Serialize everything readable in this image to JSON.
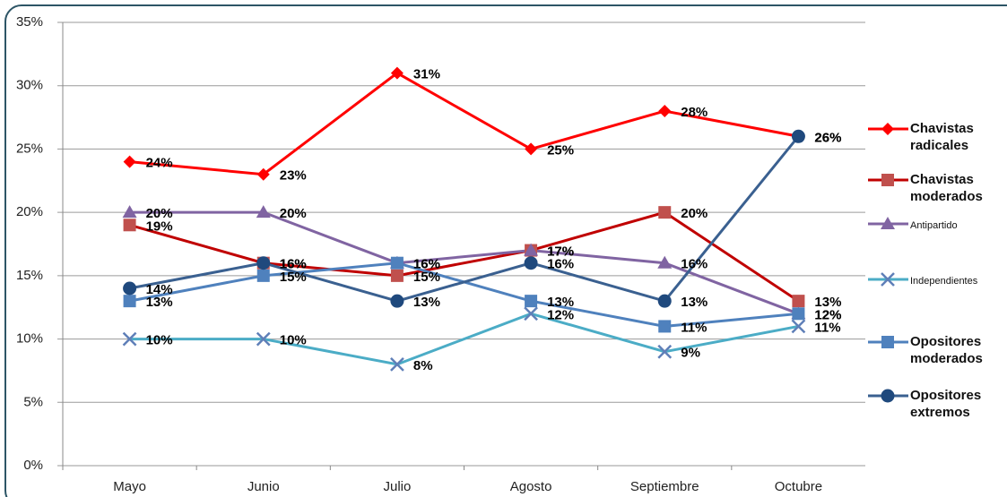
{
  "chart_data": {
    "type": "line",
    "categories": [
      "Mayo",
      "Junio",
      "Julio",
      "Agosto",
      "Septiembre",
      "Octubre"
    ],
    "ylim": [
      0,
      35
    ],
    "yticks": [
      {
        "value": 0,
        "label": "0%"
      },
      {
        "value": 5,
        "label": "5%"
      },
      {
        "value": 10,
        "label": "10%"
      },
      {
        "value": 15,
        "label": "15%"
      },
      {
        "value": 20,
        "label": "20%"
      },
      {
        "value": 25,
        "label": "25%"
      },
      {
        "value": 30,
        "label": "30%"
      },
      {
        "value": 35,
        "label": "35%"
      }
    ],
    "grid": true,
    "legend": "right",
    "series": [
      {
        "name": "Chavistas radicales",
        "color": "#ff0000",
        "marker_color": "#ff0000",
        "marker": "diamond",
        "values": [
          24,
          23,
          31,
          25,
          28,
          26
        ],
        "value_labels": [
          "24%",
          "23%",
          "31%",
          "25%",
          "28%",
          "26%"
        ]
      },
      {
        "name": "Chavistas moderados",
        "color": "#c00000",
        "marker_color": "#c0504d",
        "marker": "square",
        "values": [
          19,
          16,
          15,
          17,
          20,
          13
        ],
        "value_labels": [
          "19%",
          "16%",
          "15%",
          "17%",
          "20%",
          "13%"
        ]
      },
      {
        "name": "Antipartido",
        "color": "#8064a2",
        "marker_color": "#8064a2",
        "marker": "triangle",
        "values": [
          20,
          20,
          16,
          17,
          16,
          12
        ],
        "value_labels": [
          "20%",
          "20%",
          "16%",
          "17%",
          "16%",
          "12%"
        ]
      },
      {
        "name": "Independientes",
        "color": "#4bacc6",
        "marker_color": "#5f7fb8",
        "marker": "x",
        "values": [
          10,
          10,
          8,
          12,
          9,
          11
        ],
        "value_labels": [
          "10%",
          "10%",
          "8%",
          "12%",
          "9%",
          "11%"
        ]
      },
      {
        "name": "Opositores moderados",
        "color": "#4f81bd",
        "marker_color": "#4f81bd",
        "marker": "square",
        "values": [
          13,
          15,
          16,
          13,
          11,
          12
        ],
        "value_labels": [
          "13%",
          "15%",
          "16%",
          "13%",
          "11%",
          "12%"
        ]
      },
      {
        "name": "Opositores extremos",
        "color": "#3a6090",
        "marker_color": "#1f497d",
        "marker": "circle",
        "values": [
          14,
          16,
          13,
          16,
          13,
          26
        ],
        "value_labels": [
          "14%",
          "16%",
          "13%",
          "16%",
          "13%",
          "26%"
        ]
      }
    ]
  }
}
